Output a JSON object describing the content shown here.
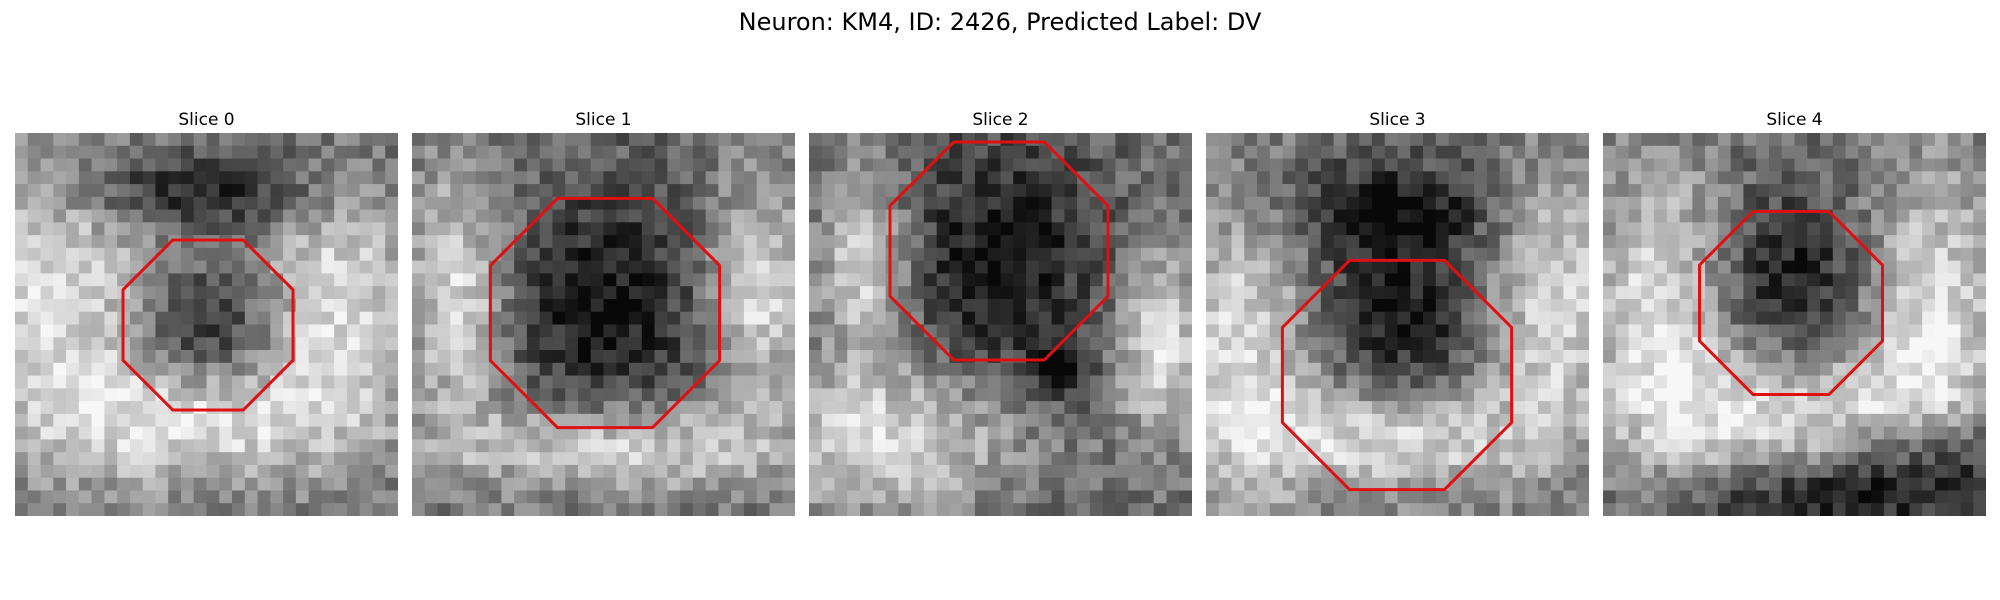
{
  "figure": {
    "title": "Neuron: KM4, ID: 2426, Predicted Label: DV",
    "overlay_color": "#e01010"
  },
  "panels": [
    {
      "title": "Slice 0"
    },
    {
      "title": "Slice 1"
    },
    {
      "title": "Slice 2"
    },
    {
      "title": "Slice 3"
    },
    {
      "title": "Slice 4"
    }
  ]
}
